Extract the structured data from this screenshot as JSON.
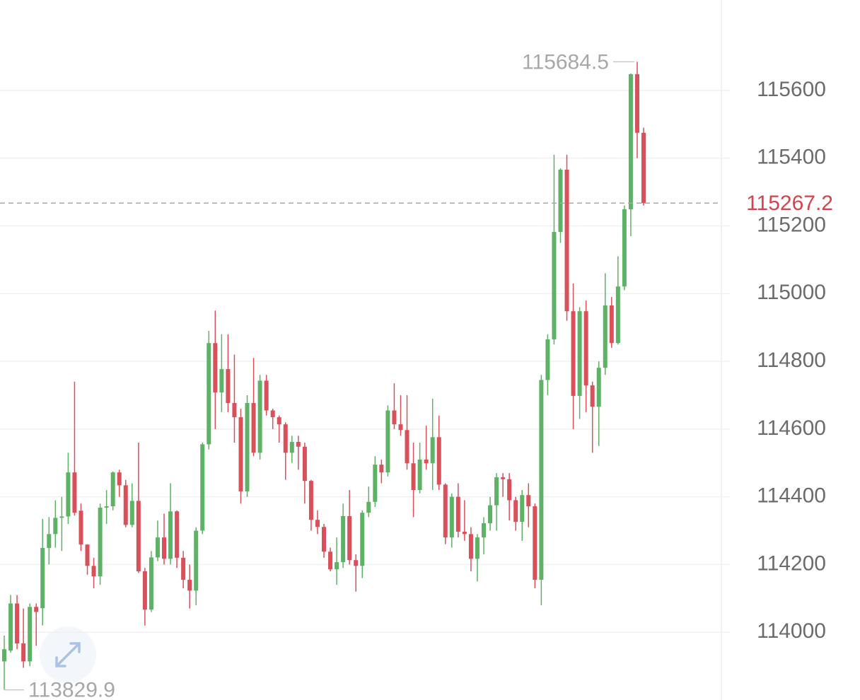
{
  "chart_data": {
    "type": "candlestick",
    "open": [
      113914,
      113946,
      114085,
      113967,
      113914,
      114075,
      114071,
      114249,
      114290,
      114338,
      114342,
      114472,
      114359,
      114259,
      114196,
      114165,
      114368,
      114372,
      114472,
      114434,
      114317,
      114388,
      114180,
      114067,
      114221,
      114280,
      114217,
      114357,
      114220,
      114155,
      114123,
      114300,
      114555,
      114854,
      114708,
      114777,
      114677,
      114635,
      114416,
      114677,
      114530,
      114743,
      114655,
      114635,
      114614,
      114530,
      114562,
      114548,
      114447,
      114332,
      114311,
      114238,
      114186,
      114207,
      114343,
      114213,
      114196,
      114353,
      114385,
      114495,
      114472,
      114655,
      114614,
      114597,
      114499,
      114420,
      114510,
      114499,
      114576,
      114436,
      114280,
      114400,
      114297,
      114290,
      114217,
      114280,
      114322,
      114375,
      114458,
      114452,
      114390,
      114326,
      114405,
      114372,
      114155,
      114745,
      114865,
      115182,
      115366,
      114948,
      114698,
      114948,
      114729,
      114666,
      114781,
      114965,
      114854,
      115021,
      115249,
      115648,
      115475
    ],
    "high": [
      113990,
      114110,
      114110,
      114070,
      114085,
      114085,
      114335,
      114340,
      114390,
      114400,
      114530,
      114740,
      114380,
      114260,
      114220,
      114380,
      114420,
      114475,
      114480,
      114450,
      114440,
      114560,
      114190,
      114240,
      114330,
      114350,
      114440,
      114360,
      114240,
      114200,
      114310,
      114560,
      114890,
      114950,
      114880,
      114880,
      114820,
      114660,
      114700,
      114810,
      114760,
      114760,
      114660,
      114640,
      114620,
      114580,
      114580,
      114560,
      114450,
      114360,
      114320,
      114250,
      114280,
      114380,
      114420,
      114230,
      114360,
      114430,
      114520,
      114510,
      114670,
      114735,
      114700,
      114700,
      114560,
      114560,
      114610,
      114690,
      114640,
      114440,
      114410,
      114440,
      114390,
      114310,
      114290,
      114340,
      114400,
      114470,
      114470,
      114470,
      114400,
      114420,
      114440,
      114380,
      114760,
      114880,
      115410,
      115370,
      115410,
      115030,
      114960,
      114980,
      114740,
      114800,
      115060,
      114990,
      115110,
      115260,
      115650,
      115684.5,
      115490
    ],
    "low": [
      113829.9,
      113940,
      113950,
      113895,
      113900,
      113960,
      114020,
      114200,
      114250,
      114240,
      114320,
      114345,
      114240,
      114170,
      114130,
      114140,
      114320,
      114360,
      114400,
      114310,
      114310,
      114175,
      114020,
      114060,
      114210,
      114200,
      114200,
      114190,
      114130,
      114070,
      114080,
      114290,
      114540,
      114600,
      114650,
      114650,
      114560,
      114380,
      114400,
      114520,
      114510,
      114640,
      114600,
      114560,
      114450,
      114500,
      114480,
      114380,
      114300,
      114290,
      114220,
      114180,
      114140,
      114190,
      114200,
      114120,
      114160,
      114340,
      114370,
      114440,
      114460,
      114600,
      114580,
      114480,
      114340,
      114410,
      114480,
      114420,
      114420,
      114260,
      114250,
      114280,
      114270,
      114180,
      114150,
      114230,
      114300,
      114300,
      114400,
      114330,
      114300,
      114270,
      114310,
      114130,
      114080,
      114700,
      114850,
      115150,
      114920,
      114600,
      114630,
      114650,
      114530,
      114550,
      114760,
      114840,
      114850,
      115010,
      115170,
      115400,
      115260
    ],
    "close": [
      113950,
      114085,
      113967,
      113914,
      114075,
      114060,
      114249,
      114290,
      114338,
      114342,
      114472,
      114353,
      114259,
      114196,
      114165,
      114368,
      114372,
      114472,
      114434,
      114317,
      114388,
      114180,
      114067,
      114221,
      114280,
      114217,
      114357,
      114220,
      114155,
      114123,
      114300,
      114555,
      114854,
      114708,
      114777,
      114677,
      114635,
      114416,
      114677,
      114530,
      114743,
      114655,
      114635,
      114614,
      114530,
      114562,
      114548,
      114447,
      114332,
      114311,
      114238,
      114186,
      114207,
      114343,
      114213,
      114196,
      114353,
      114385,
      114495,
      114472,
      114655,
      114614,
      114597,
      114499,
      114420,
      114510,
      114499,
      114576,
      114436,
      114280,
      114400,
      114297,
      114290,
      114217,
      114280,
      114322,
      114375,
      114458,
      114452,
      114390,
      114326,
      114405,
      114372,
      114155,
      114745,
      114865,
      115182,
      115366,
      114948,
      114698,
      114948,
      114729,
      114666,
      114781,
      114965,
      114854,
      115021,
      115249,
      115648,
      115475,
      115267.2
    ],
    "up_color": "#5db266",
    "down_color": "#d8505a",
    "last_price_color": "#d6434d",
    "ylim": [
      113800,
      115867
    ],
    "yticks": [
      114000,
      114200,
      114400,
      114600,
      114800,
      115000,
      115200,
      115400,
      115600
    ],
    "grid": true
  }
}
